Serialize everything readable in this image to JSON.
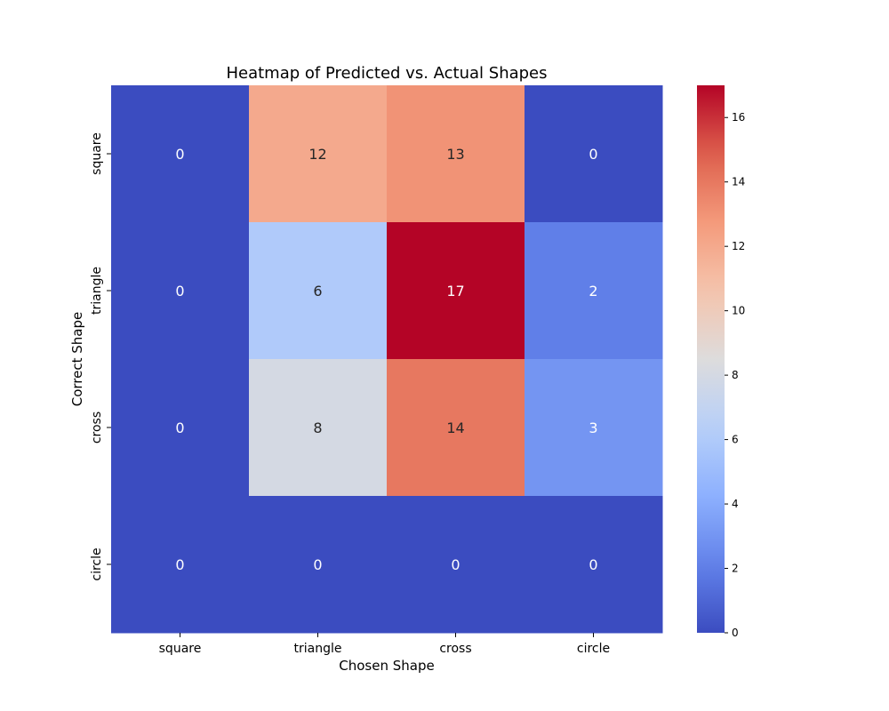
{
  "chart_data": {
    "type": "heatmap",
    "title": "Heatmap of Predicted vs. Actual Shapes",
    "xlabel": "Chosen Shape",
    "ylabel": "Correct Shape",
    "x_categories": [
      "square",
      "triangle",
      "cross",
      "circle"
    ],
    "y_categories": [
      "square",
      "triangle",
      "cross",
      "circle"
    ],
    "values": [
      [
        0,
        12,
        13,
        0
      ],
      [
        0,
        6,
        17,
        2
      ],
      [
        0,
        8,
        14,
        3
      ],
      [
        0,
        0,
        0,
        0
      ]
    ],
    "colormap": "coolwarm",
    "vmin": 0,
    "vmax": 17,
    "colorbar_ticks": [
      0,
      2,
      4,
      6,
      8,
      10,
      12,
      14,
      16
    ],
    "annotated": true
  }
}
